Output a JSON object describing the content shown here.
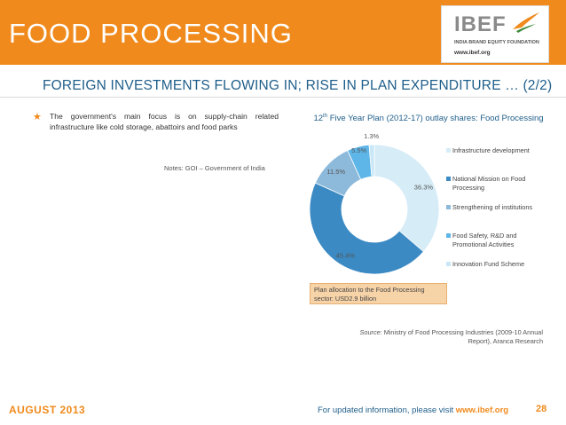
{
  "header": {
    "title": "FOOD PROCESSING",
    "logo_text": "IBEF",
    "logo_subtitle": "INDIA BRAND EQUITY FOUNDATION",
    "logo_url": "www.ibef.org"
  },
  "subtitle": "FOREIGN INVESTMENTS FLOWING IN; RISE IN PLAN EXPENDITURE … (2/2)",
  "bullet": {
    "text": "The government's main focus is on supply-chain related infrastructure like cold storage, abattoirs and food parks"
  },
  "notes": "Notes: GOI – Government of India",
  "colors": {
    "accent": "#f08a1c",
    "heading": "#1f5e8a"
  },
  "chart_data": {
    "type": "pie",
    "variant": "donut",
    "title_prefix": "12",
    "title_sup": "th",
    "title_rest": " Five Year Plan (2012-17) outlay shares: Food Processing",
    "slices": [
      {
        "label": "Infrastructure development",
        "value": 36.3,
        "display": "36.3%",
        "color": "#d6ecf7"
      },
      {
        "label": "National Mission on Food Processing",
        "value": 45.4,
        "display": "45.4%",
        "color": "#3b8ac4"
      },
      {
        "label": "Strengthening of institutions",
        "value": 11.5,
        "display": "11.5%",
        "color": "#8db9da"
      },
      {
        "label": "Food Safety, R&D and Promotional Activities",
        "value": 5.5,
        "display": "5.5%",
        "color": "#5db5e8"
      },
      {
        "label": "Innovation Fund Scheme",
        "value": 1.3,
        "display": "1.3%",
        "color": "#c9e7f6"
      }
    ],
    "legend_position": "right"
  },
  "allocation_note": "Plan allocation to the Food Processing sector: USD2.9 billion",
  "source": {
    "label": "Source:",
    "text": " Ministry of Food Processing Industries (2009-10 Annual Report), Aranca Research"
  },
  "footer": {
    "date": "AUGUST 2013",
    "text": "For updated information, please visit ",
    "url": "www.ibef.org",
    "page": "28"
  }
}
